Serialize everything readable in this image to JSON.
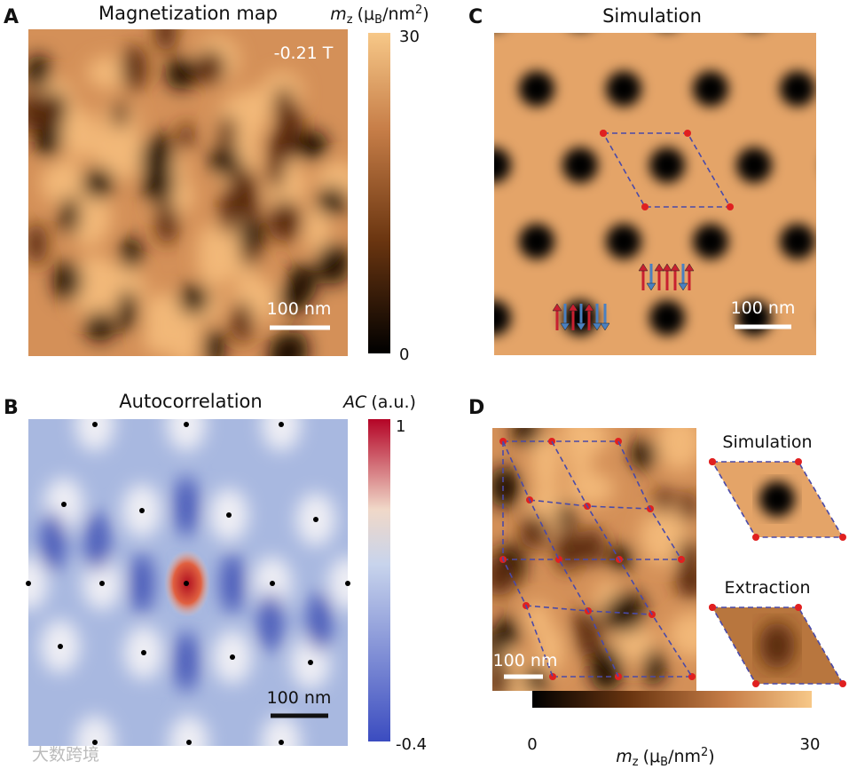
{
  "panels": [
    {
      "label": "A",
      "title": "Magnetization map",
      "field": "-0.21 T",
      "scale_bar": "100 nm",
      "colorbar": {
        "label": {
          "symbol": "m",
          "sub": "z",
          "open": "(μ",
          "unit_sub": "B",
          "unit": "/nm",
          "sup": "2",
          "close": ")"
        },
        "max": 30,
        "min": 0
      }
    },
    {
      "label": "B",
      "title": "Autocorrelation",
      "scale_bar": "100 nm",
      "colorbar": {
        "label": {
          "symbol": "AC",
          "unit": "(a.u.)"
        },
        "max": 1,
        "min": -0.4
      }
    },
    {
      "label": "C",
      "title": "Simulation",
      "scale_bar": "100 nm"
    },
    {
      "label": "D",
      "scale_bar": "100 nm",
      "insets": [
        "Simulation",
        "Extraction"
      ],
      "colorbar": {
        "label": {
          "symbol": "m",
          "sub": "z",
          "open": "(μ",
          "unit_sub": "B",
          "unit": "/nm",
          "sup": "2",
          "close": ")"
        },
        "min": 0,
        "max": 30
      }
    }
  ],
  "watermark": "大数跨境"
}
